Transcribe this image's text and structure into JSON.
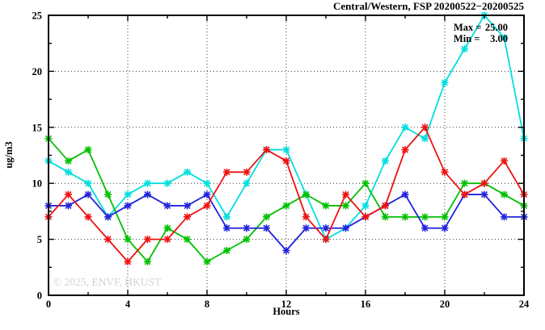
{
  "title": "Central/Western, FSP 20200522−20200525",
  "stats": {
    "max_label": "Max =",
    "max_value": "25.00",
    "min_label": "Min =",
    "min_value": "3.00"
  },
  "watermark": "© 2025, ENVF, HKUST",
  "chart_data": {
    "type": "line",
    "title": "Central/Western, FSP 20200522−20200525",
    "xlabel": "Hours",
    "ylabel": "ug/m3",
    "xlim": [
      0,
      24
    ],
    "ylim": [
      0,
      25
    ],
    "grid": true,
    "legend_position": "none",
    "x_major_ticks": [
      0,
      4,
      8,
      12,
      16,
      20,
      24
    ],
    "x_minor_ticks": [
      2,
      6,
      10,
      14,
      18,
      22
    ],
    "y_major_ticks": [
      0,
      5,
      10,
      15,
      20,
      25
    ],
    "y_minor_ticks": [
      2.5,
      7.5,
      12.5,
      17.5,
      22.5
    ],
    "x_grid_at": [
      4,
      8,
      12,
      16,
      20
    ],
    "y_grid_at": [
      5,
      10,
      15,
      20
    ],
    "stat_max": 25.0,
    "stat_min": 3.0,
    "x": [
      0,
      1,
      2,
      3,
      4,
      5,
      6,
      7,
      8,
      9,
      10,
      11,
      12,
      13,
      14,
      15,
      16,
      17,
      18,
      19,
      20,
      21,
      22,
      23,
      24
    ],
    "series": [
      {
        "name": "cyan-series",
        "color": "#00dede",
        "values": [
          12,
          11,
          10,
          7,
          9,
          10,
          10,
          11,
          10,
          7,
          10,
          13,
          13,
          9,
          5,
          6,
          8,
          12,
          15,
          14,
          19,
          22,
          25,
          23,
          14
        ]
      },
      {
        "name": "green-series",
        "color": "#00c000",
        "values": [
          14,
          12,
          13,
          9,
          5,
          3,
          6,
          5,
          3,
          4,
          5,
          7,
          8,
          9,
          8,
          8,
          10,
          7,
          7,
          7,
          7,
          10,
          10,
          9,
          8
        ]
      },
      {
        "name": "blue-series",
        "color": "#2222dd",
        "values": [
          8,
          8,
          9,
          7,
          8,
          9,
          8,
          8,
          9,
          6,
          6,
          6,
          4,
          6,
          6,
          6,
          7,
          8,
          9,
          6,
          6,
          9,
          9,
          7,
          7
        ]
      },
      {
        "name": "red-series",
        "color": "#ee1111",
        "values": [
          7,
          9,
          7,
          5,
          3,
          5,
          5,
          7,
          8,
          11,
          11,
          13,
          12,
          7,
          5,
          9,
          7,
          8,
          13,
          15,
          11,
          9,
          10,
          12,
          9
        ]
      }
    ]
  }
}
